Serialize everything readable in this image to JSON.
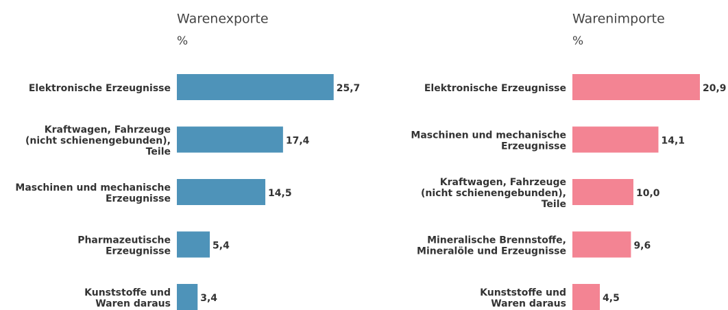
{
  "chart_data": [
    {
      "type": "bar",
      "orientation": "horizontal",
      "title": "Warenexporte",
      "subtitle": "%",
      "categories": [
        [
          "Elektronische Erzeugnisse"
        ],
        [
          "Kraftwagen, Fahrzeuge",
          "(nicht schienengebunden),",
          "Teile"
        ],
        [
          "Maschinen und mechanische",
          "Erzeugnisse"
        ],
        [
          "Pharmazeutische",
          "Erzeugnisse"
        ],
        [
          "Kunststoffe und",
          "Waren daraus"
        ]
      ],
      "values": [
        25.7,
        17.4,
        14.5,
        5.4,
        3.4
      ],
      "value_labels": [
        "25,7",
        "17,4",
        "14,5",
        "5,4",
        "3,4"
      ],
      "color": "#4e93b9",
      "xlim": [
        0,
        30
      ]
    },
    {
      "type": "bar",
      "orientation": "horizontal",
      "title": "Warenimporte",
      "subtitle": "%",
      "categories": [
        [
          "Elektronische Erzeugnisse"
        ],
        [
          "Maschinen und mechanische",
          "Erzeugnisse"
        ],
        [
          "Kraftwagen, Fahrzeuge",
          "(nicht schienengebunden),",
          "Teile"
        ],
        [
          "Mineralische Brennstoffe,",
          "Mineralöle und Erzeugnisse"
        ],
        [
          "Kunststoffe und",
          "Waren daraus"
        ]
      ],
      "values": [
        20.9,
        14.1,
        10.0,
        9.6,
        4.5
      ],
      "value_labels": [
        "20,9",
        "14,1",
        "10,0",
        "9,6",
        "4,5"
      ],
      "color": "#f38493",
      "xlim": [
        0,
        30
      ]
    }
  ]
}
